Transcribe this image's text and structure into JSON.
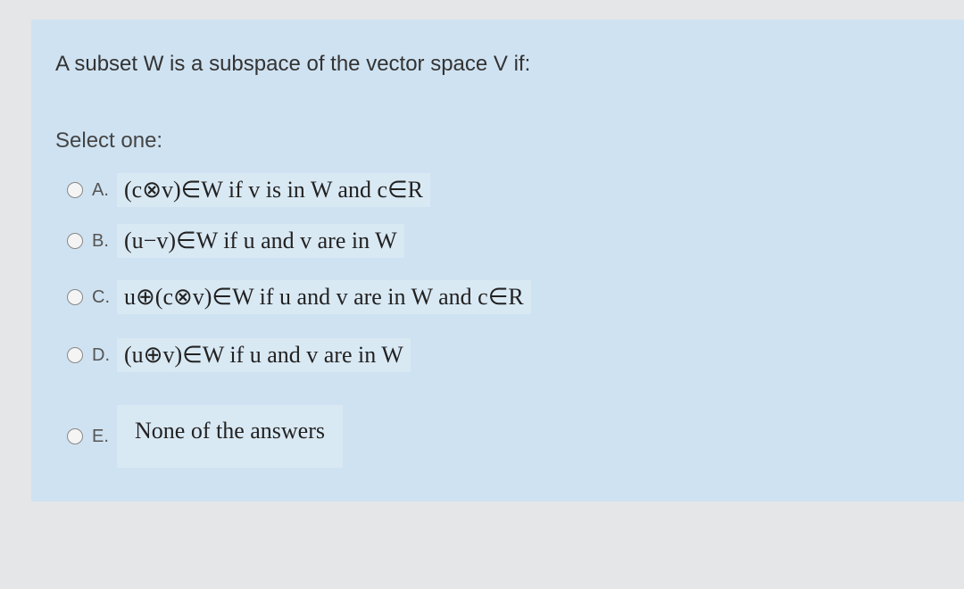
{
  "question": "A subset W is a subspace of the vector space V if:",
  "prompt": "Select one:",
  "options": [
    {
      "letter": "A.",
      "text": "(c⊗v)∈W if v is in W and c∈R"
    },
    {
      "letter": "B.",
      "text": "(u−v)∈W if u and v are in W"
    },
    {
      "letter": "C.",
      "text": "u⊕(c⊗v)∈W if u and v are in W and c∈R"
    },
    {
      "letter": "D.",
      "text": "(u⊕v)∈W if u and v are in W"
    },
    {
      "letter": "E.",
      "text": "None of the answers"
    }
  ]
}
